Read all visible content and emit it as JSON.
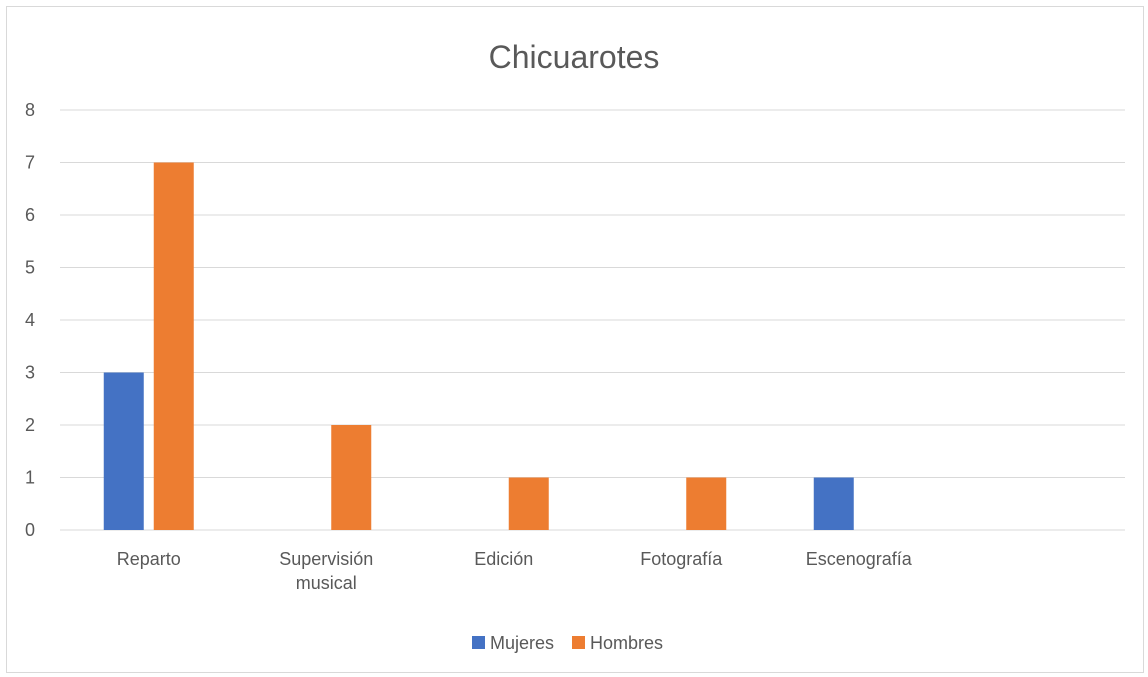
{
  "chart_data": {
    "type": "bar",
    "title": "Chicuarotes",
    "categories": [
      [
        "Reparto"
      ],
      [
        "Supervisión",
        "musical"
      ],
      [
        "Edición"
      ],
      [
        "Fotografía"
      ],
      [
        "Escenografía"
      ],
      [
        ""
      ]
    ],
    "series": [
      {
        "name": "Mujeres",
        "color": "#4472c4",
        "values": [
          3,
          0,
          0,
          0,
          1,
          0
        ]
      },
      {
        "name": "Hombres",
        "color": "#ed7d31",
        "values": [
          7,
          2,
          1,
          1,
          0,
          0
        ]
      }
    ],
    "ylim": [
      0,
      8
    ],
    "yticks": [
      0,
      1,
      2,
      3,
      4,
      5,
      6,
      7,
      8
    ],
    "grid": true,
    "legend_position": "bottom"
  }
}
